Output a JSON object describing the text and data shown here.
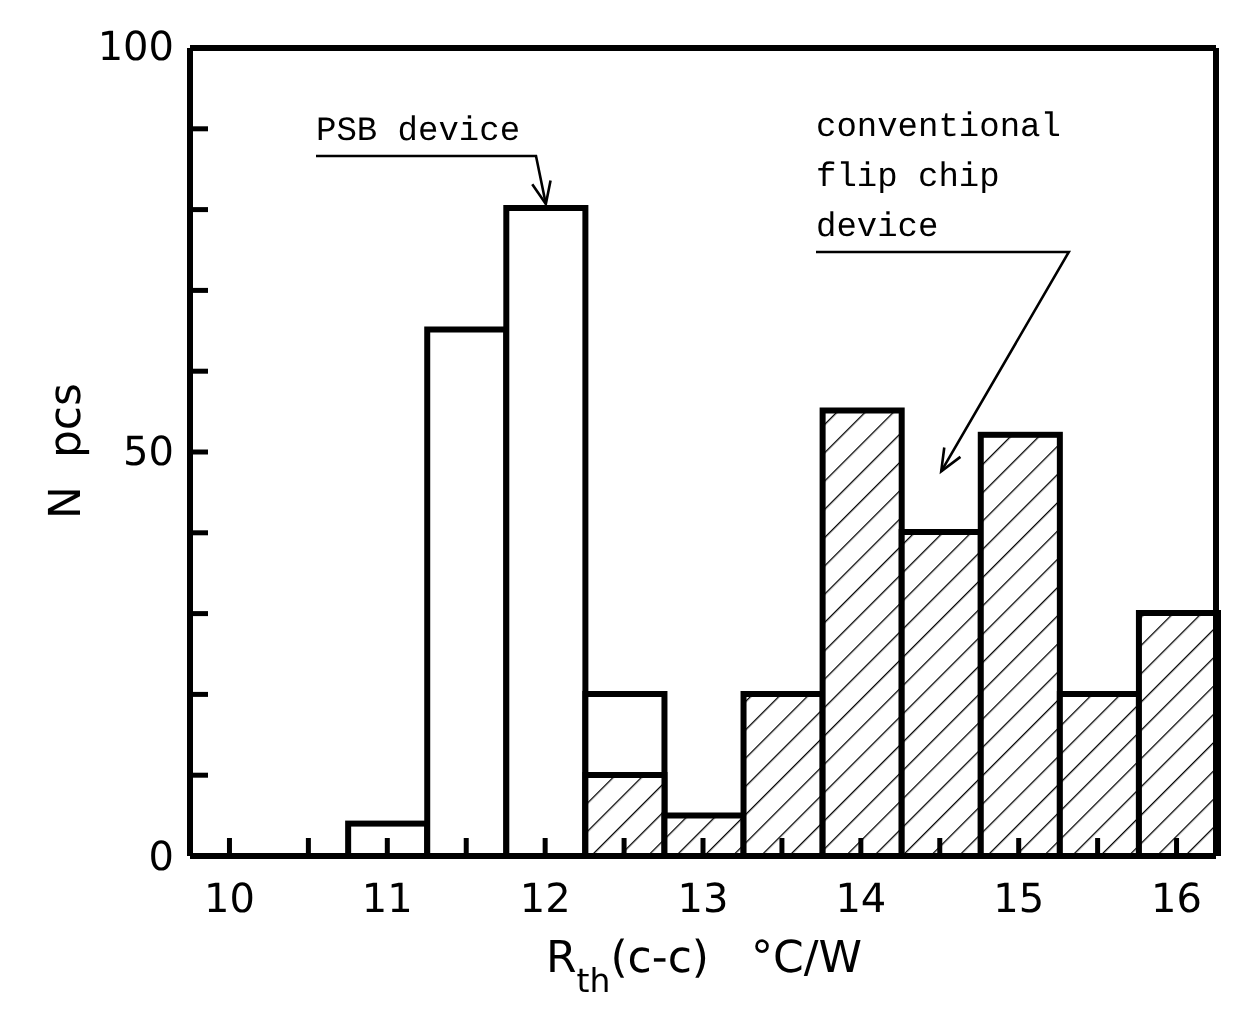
{
  "chart_data": {
    "type": "histogram",
    "xlabel": "R$_{th}$(c-c)   °C/W",
    "ylabel": "N  pcs",
    "bins": [
      10.75,
      11.25,
      11.75,
      12.25,
      12.75,
      13.25,
      13.75,
      14.25,
      14.75,
      15.25,
      15.75,
      16.25
    ],
    "series": [
      {
        "color": "#ffffff",
        "values": [
          4,
          65,
          80,
          20,
          null,
          null,
          null,
          null,
          null,
          null,
          null
        ]
      },
      {
        "color": "#000000",
        "values": [
          null,
          null,
          null,
          10,
          5,
          20,
          55,
          40,
          52,
          20,
          30
        ]
      }
    ],
    "xlim": [
      9.75,
      16.25
    ],
    "xticks": [
      10,
      {
        "value": 10.5,
        "label": null
      },
      11,
      {
        "value": 11.5,
        "label": null
      },
      12,
      {
        "value": 12.5,
        "label": null
      },
      13,
      {
        "value": 13.5,
        "label": null
      },
      14,
      {
        "value": 14.5,
        "label": null
      },
      15,
      {
        "value": 15.5,
        "label": null
      },
      16
    ],
    "ylim": [
      0,
      100
    ],
    "yticks": [
      0,
      {
        "value": 10,
        "label": null
      },
      {
        "value": 20,
        "label": null
      },
      {
        "value": 30,
        "label": null
      },
      {
        "value": 40,
        "label": null
      },
      50,
      {
        "value": 60,
        "label": null
      },
      {
        "value": 70,
        "label": null
      },
      {
        "value": 80,
        "label": null
      },
      {
        "value": 90,
        "label": null
      },
      100
    ],
    "annotations": [
      {
        "text": "PSB device",
        "x": 12,
        "y": 80
      },
      "conventional flip chip device"
    ]
  }
}
